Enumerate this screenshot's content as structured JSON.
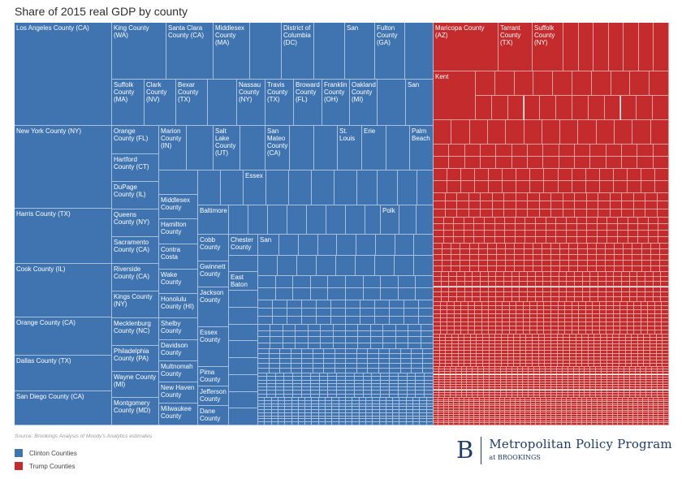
{
  "chart_data": {
    "type": "treemap",
    "title": "Share of 2015 real GDP by county",
    "source": "Source: Brookings Analysis of Moody's Analytics estimates",
    "legend": [
      {
        "label": "Clinton Counties",
        "color": "#3f74b0"
      },
      {
        "label": "Trump Counties",
        "color": "#c32b2c"
      }
    ],
    "labeled_counties": {
      "clinton": [
        "Los Angeles County (CA)",
        "King County (WA)",
        "Santa Clara County (CA)",
        "Middlesex County (MA)",
        "District of Columbia (DC)",
        "San",
        "Fulton County (GA)",
        "Suffolk County (MA)",
        "Clark County (NV)",
        "Bexar County (TX)",
        "Nassau County (NY)",
        "Travis County (TX)",
        "Broward County (FL)",
        "Franklin County (OH)",
        "Oakland County (MI)",
        "San",
        "New York County (NY)",
        "Orange County (FL)",
        "Marion County (IN)",
        "Salt Lake County (UT)",
        "San Mateo County (CA)",
        "St. Louis",
        "Erie",
        "Palm Beach",
        "Hartford County (CT)",
        "DuPage County (IL)",
        "Essex",
        "Harris County (TX)",
        "Queens County (NY)",
        "Middlesex County",
        "Baltimore",
        "Polk",
        "Sacramento County (CA)",
        "Hamilton County",
        "Cobb County",
        "Chester County",
        "San",
        "Contra Costa",
        "Gwinnett County",
        "Cook County (IL)",
        "Riverside County (CA)",
        "Wake County",
        "East Baton",
        "Kings County (NY)",
        "Honolulu County (HI)",
        "Jackson County",
        "Orange County (CA)",
        "Mecklenburg County (NC)",
        "Shelby County",
        "Essex County",
        "Philadelphia County (PA)",
        "Davidson County",
        "Dallas County (TX)",
        "Multnomah County",
        "Wayne County (MI)",
        "Pima County",
        "New Haven County",
        "San Diego County (CA)",
        "Jefferson County",
        "Montgomery County (MD)",
        "Milwaukee County",
        "Dane County"
      ],
      "trump": [
        "Maricopa County (AZ)",
        "Tarrant County (TX)",
        "Suffolk County (NY)",
        "Kent"
      ]
    },
    "labels": {
      "la": "Los Angeles County (CA)",
      "king": "King County\n(WA)",
      "santaclara": "Santa Clara\nCounty (CA)",
      "middlesex_ma": "Middlesex\nCounty\n(MA)",
      "dc": "District of\nColumbia\n(DC)",
      "san1": "San",
      "fulton": "Fulton\nCounty\n(GA)",
      "maricopa": "Maricopa County\n(AZ)",
      "tarrant": "Tarrant\nCounty\n(TX)",
      "suffolk_ny": "Suffolk\nCounty\n(NY)",
      "suffolk_ma": "Suffolk\nCounty\n(MA)",
      "clark": "Clark\nCounty\n(NV)",
      "bexar": "Bexar\nCounty\n(TX)",
      "nassau": "Nassau\nCounty\n(NY)",
      "travis": "Travis\nCounty\n(TX)",
      "broward": "Broward\nCounty\n(FL)",
      "franklin": "Franklin\nCounty\n(OH)",
      "oakland": "Oakland\nCounty\n(MI)",
      "san2": "San",
      "kent": "Kent",
      "ny": "New York County (NY)",
      "orange_fl": "Orange\nCounty (FL)",
      "marion": "Marion\nCounty\n(IN)",
      "saltlake": "Salt\nLake\nCounty\n(UT)",
      "sanmateo": "San\nMateo\nCounty\n(CA)",
      "stlouis": "St.\nLouis",
      "erie": "Erie",
      "palmbeach": "Palm\nBeach",
      "hartford": "Hartford\nCounty (CT)",
      "dupage": "DuPage\nCounty (IL)",
      "essex1": "Essex",
      "harris": "Harris County (TX)",
      "queens": "Queens\nCounty (NY)",
      "middlesex2": "Middlesex\nCounty",
      "baltimore": "Baltimore",
      "polk": "Polk",
      "sacramento": "Sacramento\nCounty (CA)",
      "hamilton": "Hamilton\nCounty",
      "cobb": "Cobb\nCounty",
      "chester": "Chester\nCounty",
      "san3": "San",
      "contracosta": "Contra\nCosta",
      "gwinnett": "Gwinnett\nCounty",
      "cook": "Cook County (IL)",
      "riverside": "Riverside\nCounty (CA)",
      "wake": "Wake\nCounty",
      "eastbaton": "East\nBaton",
      "kings": "Kings County\n(NY)",
      "honolulu": "Honolulu\nCounty (HI)",
      "jackson": "Jackson\nCounty",
      "orange_ca": "Orange County (CA)",
      "mecklenburg": "Mecklenburg\nCounty (NC)",
      "shelby": "Shelby\nCounty",
      "essex2": "Essex\nCounty",
      "philadelphia": "Philadelphia\nCounty (PA)",
      "davidson": "Davidson\nCounty",
      "dallas": "Dallas County (TX)",
      "multnomah": "Multnomah\nCounty",
      "wayne": "Wayne County\n(MI)",
      "pima": "Pima\nCounty",
      "newhaven": "New Haven\nCounty",
      "sandiego": "San Diego County (CA)",
      "jefferson": "Jefferson\nCounty",
      "montgomery": "Montgomery\nCounty (MD)",
      "milwaukee": "Milwaukee\nCounty",
      "dane": "Dane\nCounty"
    }
  },
  "branding": {
    "logo_letter": "B",
    "program": "Metropolitan Policy Program",
    "sub": "at BROOKINGS"
  }
}
